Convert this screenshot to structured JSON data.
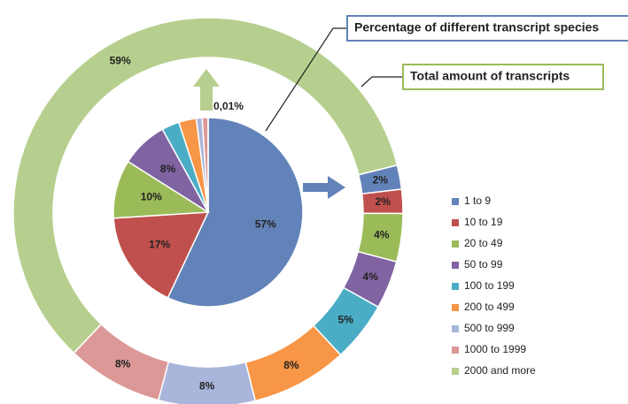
{
  "chart_data": {
    "type": "pie",
    "categories": [
      "1 to 9",
      "10 to 19",
      "20 to 49",
      "50 to 99",
      "100 to 199",
      "200 to 499",
      "500 to 999",
      "1000 to 1999",
      "2000 and more"
    ],
    "colors": [
      "#6283b9",
      "#c0504d",
      "#9bbb59",
      "#8064a2",
      "#4bacc6",
      "#f79646",
      "#a9b5da",
      "#dc9896",
      "#b7cf8e"
    ],
    "series": [
      {
        "name": "Percentage of different transcript species",
        "values": [
          57,
          17,
          10,
          8,
          3,
          3,
          1,
          1,
          0.01
        ],
        "value_labels": [
          "57%",
          "17%",
          "10%",
          "8%",
          null,
          null,
          null,
          null,
          "0,01%"
        ]
      },
      {
        "name": "Total amount of transcripts",
        "values": [
          2,
          2,
          4,
          4,
          5,
          8,
          8,
          8,
          59
        ],
        "value_labels": [
          "2%",
          "2%",
          "4%",
          "4%",
          "5%",
          "8%",
          "8%",
          "8%",
          "59%"
        ]
      }
    ],
    "legend": "right"
  }
}
